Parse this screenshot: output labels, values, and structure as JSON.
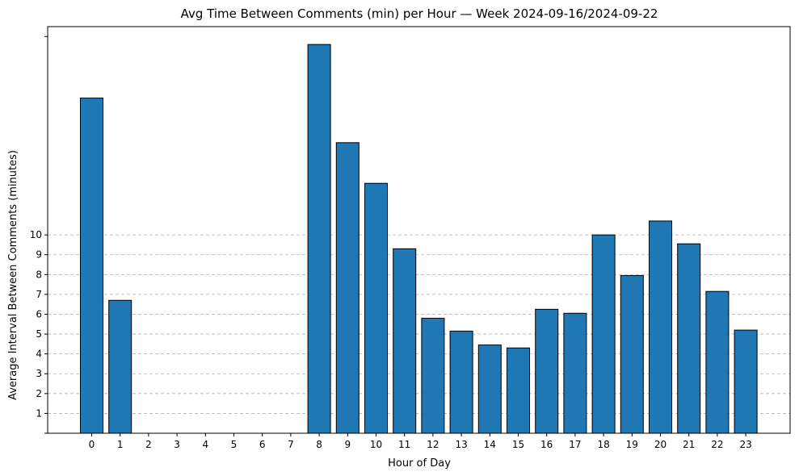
{
  "chart_data": {
    "type": "bar",
    "title": "Avg Time Between Comments (min) per Hour — Week 2024-09-16/2024-09-22",
    "xlabel": "Hour of Day",
    "ylabel": "Average Interval Between Comments (minutes)",
    "categories": [
      "0",
      "1",
      "2",
      "3",
      "4",
      "5",
      "6",
      "7",
      "8",
      "9",
      "10",
      "11",
      "12",
      "13",
      "14",
      "15",
      "16",
      "17",
      "18",
      "19",
      "20",
      "21",
      "22",
      "23"
    ],
    "values": [
      16.9,
      6.7,
      0,
      0,
      0,
      0,
      0,
      0,
      19.6,
      14.65,
      12.6,
      9.3,
      5.8,
      5.15,
      4.45,
      4.3,
      6.25,
      6.05,
      10.0,
      7.95,
      10.7,
      9.55,
      7.15,
      5.2
    ],
    "yticks": [
      1,
      2,
      3,
      4,
      5,
      6,
      7,
      8,
      9,
      10
    ],
    "ylim": [
      0,
      20.5
    ],
    "grid": "y-dashed",
    "bar_color": "#1f77b4",
    "edge_color": "#000000"
  }
}
